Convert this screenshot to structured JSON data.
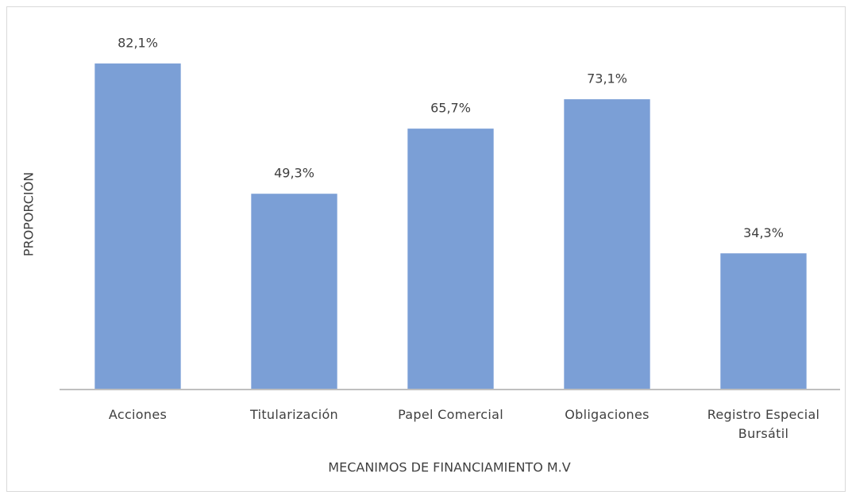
{
  "chart_data": {
    "type": "bar",
    "xlabel": "MECANIMOS DE FINANCIAMIENTO M.V",
    "ylabel": "PROPORCIÓN",
    "categories": [
      "Acciones",
      "Titularización",
      "Papel Comercial",
      "Obligaciones",
      "Registro Especial Bursátil"
    ],
    "values": [
      82.1,
      49.3,
      65.7,
      73.1,
      34.3
    ],
    "value_labels": [
      "82,1%",
      "49,3%",
      "65,7%",
      "73,1%",
      "34,3%"
    ],
    "color": "#7b9fd6",
    "ylim": [
      0,
      90
    ],
    "grid": false
  }
}
